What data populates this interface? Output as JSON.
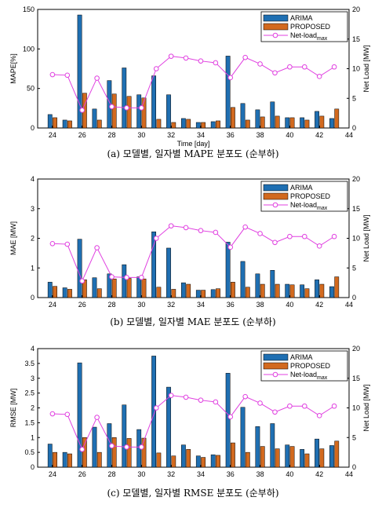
{
  "chart_data": [
    {
      "type": "bar",
      "caption": "(a) 모델별, 일자별 MAPE 분포도 (순부하)",
      "xlabel": "Time [day]",
      "ylabel": "MAPE[%]",
      "y2label": "Net Load [MW]",
      "xlim": [
        23,
        44
      ],
      "xticks": [
        24,
        26,
        28,
        30,
        32,
        34,
        36,
        38,
        40,
        42,
        44
      ],
      "ylim": [
        0,
        150
      ],
      "yticks": [
        0,
        50,
        100,
        150
      ],
      "y2lim": [
        0,
        20
      ],
      "y2ticks": [
        0,
        5,
        10,
        15,
        20
      ],
      "legend_position": "top-right",
      "x": [
        24,
        25,
        26,
        27,
        28,
        29,
        30,
        31,
        32,
        33,
        34,
        35,
        36,
        37,
        38,
        39,
        40,
        41,
        42,
        43
      ],
      "series": [
        {
          "name": "ARIMA",
          "color": "#1f6fb2",
          "axis": "left",
          "values": [
            17,
            10,
            143,
            24,
            60,
            76,
            42,
            66,
            42,
            12,
            7,
            8,
            91,
            31,
            23,
            33,
            13,
            13,
            21,
            12
          ]
        },
        {
          "name": "PROPOSED",
          "color": "#d2691e",
          "axis": "left",
          "values": [
            13,
            9,
            44,
            10,
            43,
            40,
            38,
            11,
            7,
            11,
            7,
            9,
            26,
            10,
            14,
            15,
            13,
            10,
            15,
            24
          ]
        },
        {
          "name": "Net-load",
          "name_sub": "max",
          "color": "#e040e0",
          "axis": "right",
          "type": "line",
          "values": [
            9.0,
            8.9,
            3.0,
            8.4,
            3.6,
            3.4,
            3.4,
            10.0,
            12.1,
            11.8,
            11.3,
            11.0,
            8.5,
            11.9,
            10.8,
            9.3,
            10.3,
            10.3,
            8.7,
            10.3
          ]
        }
      ]
    },
    {
      "type": "bar",
      "caption": "(b) 모델별, 일자별 MAE 분포도 (순부하)",
      "xlabel": "",
      "ylabel": "MAE [MW]",
      "y2label": "Net Load [MW]",
      "xlim": [
        23,
        44
      ],
      "xticks": [
        24,
        26,
        28,
        30,
        32,
        34,
        36,
        38,
        40,
        42,
        44
      ],
      "ylim": [
        0,
        4
      ],
      "yticks": [
        0,
        1,
        2,
        3,
        4
      ],
      "y2lim": [
        0,
        20
      ],
      "y2ticks": [
        0,
        5,
        10,
        15,
        20
      ],
      "legend_position": "top-right",
      "x": [
        24,
        25,
        26,
        27,
        28,
        29,
        30,
        31,
        32,
        33,
        34,
        35,
        36,
        37,
        38,
        39,
        40,
        41,
        42,
        43
      ],
      "series": [
        {
          "name": "ARIMA",
          "color": "#1f6fb2",
          "axis": "left",
          "values": [
            0.52,
            0.33,
            1.97,
            0.67,
            0.8,
            1.11,
            0.7,
            2.22,
            1.67,
            0.5,
            0.25,
            0.27,
            1.87,
            1.22,
            0.8,
            0.92,
            0.45,
            0.43,
            0.6,
            0.37
          ]
        },
        {
          "name": "PROPOSED",
          "color": "#d2691e",
          "axis": "left",
          "values": [
            0.38,
            0.28,
            0.6,
            0.3,
            0.63,
            0.65,
            0.63,
            0.35,
            0.28,
            0.45,
            0.25,
            0.3,
            0.52,
            0.35,
            0.45,
            0.45,
            0.43,
            0.3,
            0.45,
            0.7
          ]
        },
        {
          "name": "Net-load",
          "name_sub": "max",
          "color": "#e040e0",
          "axis": "right",
          "type": "line",
          "values": [
            9.1,
            9.0,
            2.8,
            8.4,
            3.5,
            3.4,
            3.4,
            10.0,
            12.1,
            11.8,
            11.3,
            11.0,
            8.5,
            11.9,
            10.8,
            9.3,
            10.3,
            10.3,
            8.7,
            10.3
          ]
        }
      ]
    },
    {
      "type": "bar",
      "caption": "(c) 모델별, 일자별 RMSE 분포도 (순부하)",
      "xlabel": "",
      "ylabel": "RMSE [MW]",
      "y2label": "Net Load [MW]",
      "xlim": [
        23,
        44
      ],
      "xticks": [
        24,
        26,
        28,
        30,
        32,
        34,
        36,
        38,
        40,
        42,
        44
      ],
      "ylim": [
        0,
        4
      ],
      "yticks": [
        0,
        0.5,
        1,
        1.5,
        2,
        2.5,
        3,
        3.5,
        4
      ],
      "y2lim": [
        0,
        20
      ],
      "y2ticks": [
        0,
        5,
        10,
        15,
        20
      ],
      "legend_position": "top-right",
      "x": [
        24,
        25,
        26,
        27,
        28,
        29,
        30,
        31,
        32,
        33,
        34,
        35,
        36,
        37,
        38,
        39,
        40,
        41,
        42,
        43
      ],
      "series": [
        {
          "name": "ARIMA",
          "color": "#1f6fb2",
          "axis": "left",
          "values": [
            0.78,
            0.5,
            3.52,
            1.35,
            1.47,
            2.1,
            1.27,
            3.75,
            2.7,
            0.75,
            0.38,
            0.42,
            3.17,
            2.02,
            1.37,
            1.47,
            0.75,
            0.6,
            0.95,
            0.73
          ]
        },
        {
          "name": "PROPOSED",
          "color": "#d2691e",
          "axis": "left",
          "values": [
            0.5,
            0.45,
            1.0,
            0.5,
            1.0,
            0.97,
            0.98,
            0.48,
            0.38,
            0.6,
            0.33,
            0.4,
            0.82,
            0.5,
            0.7,
            0.62,
            0.7,
            0.45,
            0.62,
            0.88
          ]
        },
        {
          "name": "Net-load",
          "name_sub": "max",
          "color": "#e040e0",
          "axis": "right",
          "type": "line",
          "values": [
            9.0,
            8.9,
            3.0,
            8.4,
            3.6,
            3.4,
            3.4,
            10.0,
            12.1,
            11.8,
            11.3,
            11.0,
            8.5,
            11.9,
            10.8,
            9.3,
            10.3,
            10.3,
            8.7,
            10.3
          ]
        }
      ]
    }
  ]
}
